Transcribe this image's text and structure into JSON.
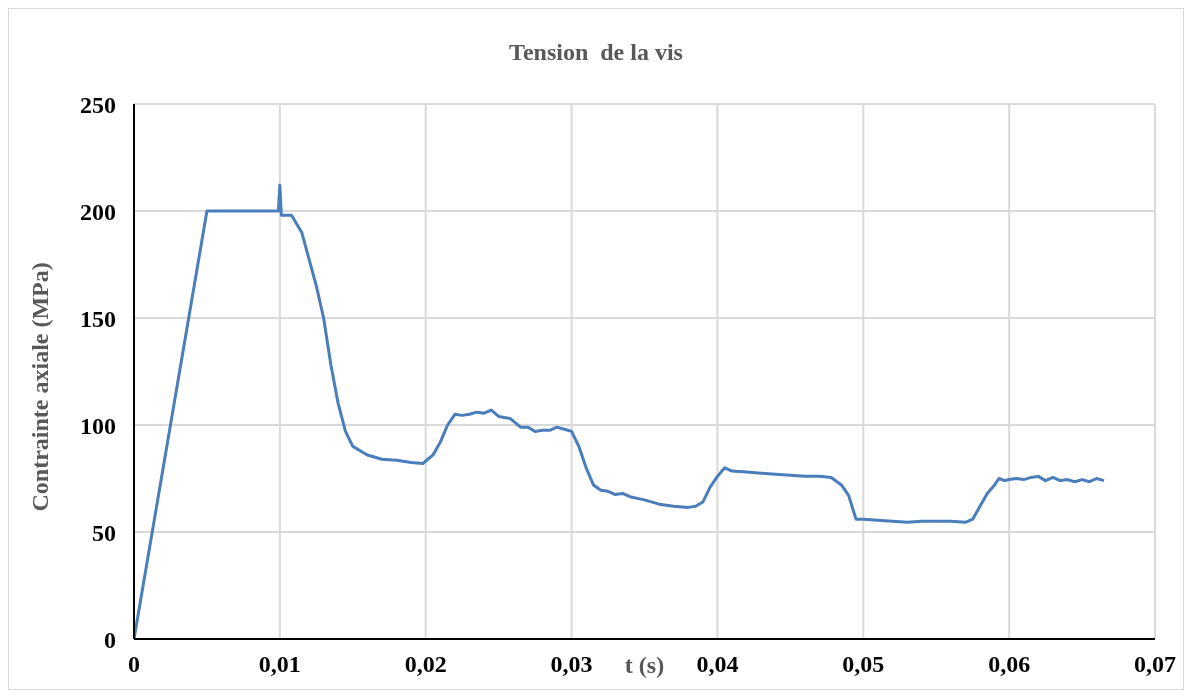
{
  "chart_data": {
    "type": "line",
    "title": "Tension  de la vis",
    "xlabel": "t (s)",
    "ylabel": "Contrainte axiale (MPa)",
    "xlim": [
      0,
      0.07
    ],
    "xticks": [
      0,
      {
        "value": 0.01,
        "label": "0,01"
      },
      {
        "value": 0.02,
        "label": "0,02"
      },
      {
        "value": 0.03,
        "label": "0,03"
      },
      {
        "value": 0.04,
        "label": "0,04"
      },
      {
        "value": 0.05,
        "label": "0,05"
      },
      {
        "value": 0.06,
        "label": "0,06"
      },
      {
        "value": 0.07,
        "label": "0,07"
      }
    ],
    "ylim": [
      0,
      250
    ],
    "yticks": [
      0,
      50,
      100,
      150,
      200,
      250
    ],
    "grid": true,
    "marker": "none",
    "line_style": "solid",
    "series": [
      {
        "color": "#4a7ebb",
        "x": [
          0,
          0.005,
          0.0099,
          0.01,
          0.0101,
          0.0108,
          0.0115,
          0.0125,
          0.013,
          0.0135,
          0.014,
          0.0145,
          0.015,
          0.016,
          0.017,
          0.018,
          0.019,
          0.0198,
          0.0205,
          0.021,
          0.0215,
          0.022,
          0.0225,
          0.023,
          0.0235,
          0.024,
          0.0245,
          0.025,
          0.0258,
          0.0265,
          0.027,
          0.0275,
          0.028,
          0.0285,
          0.029,
          0.0295,
          0.03,
          0.0305,
          0.031,
          0.0315,
          0.032,
          0.0325,
          0.033,
          0.0335,
          0.034,
          0.035,
          0.036,
          0.037,
          0.038,
          0.0385,
          0.039,
          0.0395,
          0.04,
          0.0405,
          0.041,
          0.042,
          0.043,
          0.044,
          0.045,
          0.046,
          0.047,
          0.0478,
          0.0485,
          0.049,
          0.0495,
          0.05,
          0.051,
          0.052,
          0.053,
          0.054,
          0.055,
          0.056,
          0.057,
          0.0575,
          0.058,
          0.0585,
          0.059,
          0.0593,
          0.0597,
          0.06,
          0.0605,
          0.061,
          0.0615,
          0.062,
          0.0625,
          0.063,
          0.0635,
          0.064,
          0.0645,
          0.065,
          0.0655,
          0.066,
          0.0665
        ],
        "values": [
          0,
          200,
          200,
          212,
          198,
          198,
          190,
          165,
          150,
          128,
          110,
          97,
          90,
          86,
          84,
          83.5,
          82.5,
          82,
          86,
          92,
          100,
          105,
          104.5,
          105,
          106,
          105.5,
          107,
          104,
          103,
          99,
          99,
          97,
          97.5,
          97.5,
          99,
          98,
          97,
          90,
          80,
          72,
          69.5,
          69,
          67.5,
          68,
          66.5,
          65,
          63,
          62,
          61.5,
          62,
          64,
          71,
          76,
          80,
          78.5,
          78,
          77.5,
          77,
          76.5,
          76,
          76,
          75.5,
          72,
          67,
          56,
          56,
          55.5,
          55,
          54.5,
          55,
          55,
          55,
          54.5,
          56,
          62,
          68,
          72,
          75,
          74,
          74.5,
          75,
          74.5,
          75.5,
          76,
          74,
          75.5,
          74,
          74.5,
          73.5,
          74.5,
          73.5,
          75,
          74
        ]
      }
    ]
  }
}
